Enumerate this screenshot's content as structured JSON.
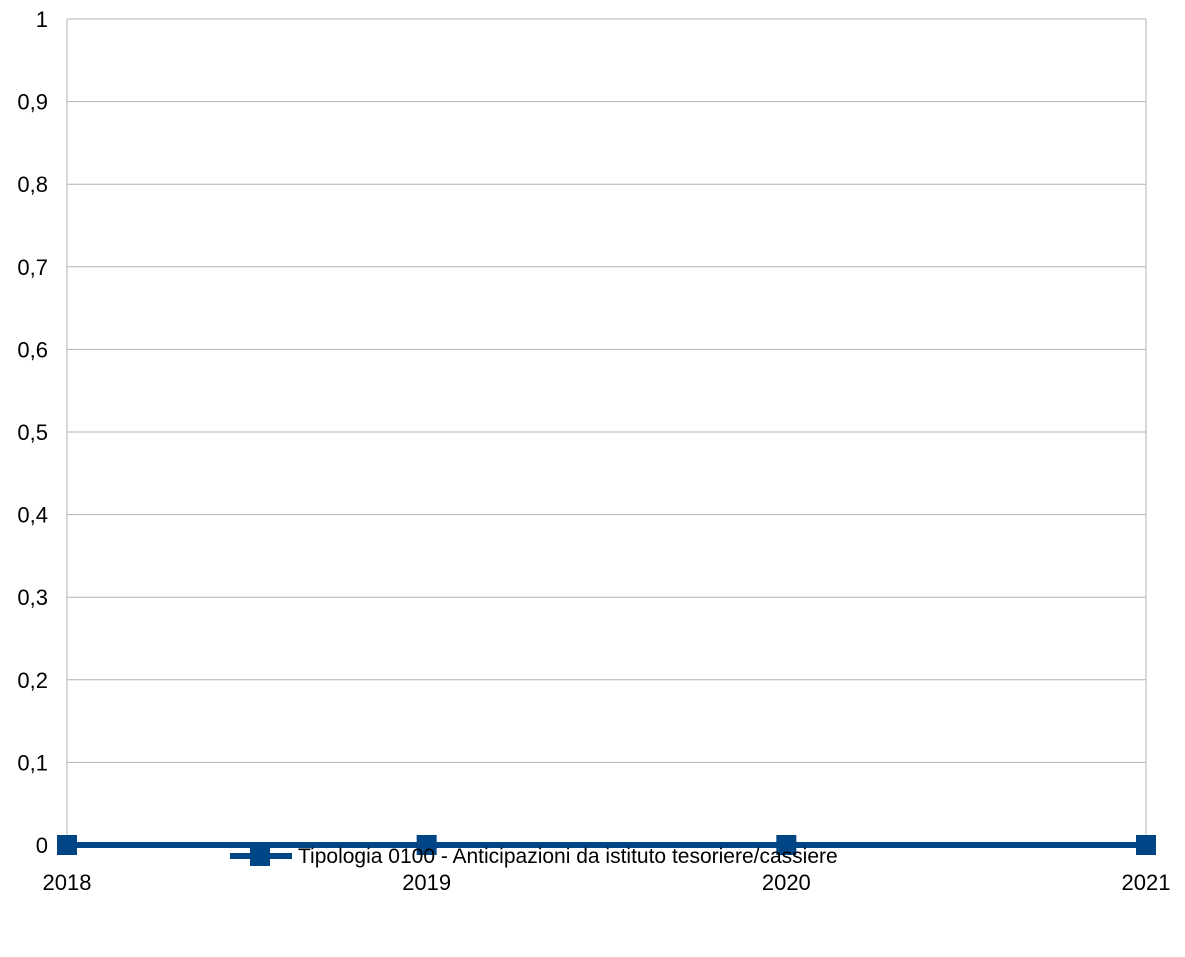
{
  "chart_data": {
    "type": "line",
    "title": "",
    "xlabel": "",
    "ylabel": "",
    "categories": [
      "2018",
      "2019",
      "2020",
      "2021"
    ],
    "ylim": [
      0,
      1
    ],
    "yticks": [
      "0",
      "0,1",
      "0,2",
      "0,3",
      "0,4",
      "0,5",
      "0,6",
      "0,7",
      "0,8",
      "0,9",
      "1"
    ],
    "grid": "horizontal",
    "legend_position": "bottom",
    "series": [
      {
        "name": "Tipologia 0100 - Anticipazioni da istituto tesoriere/cassiere",
        "values": [
          0,
          0,
          0,
          0
        ],
        "color": "#004586",
        "marker": "square"
      }
    ]
  }
}
